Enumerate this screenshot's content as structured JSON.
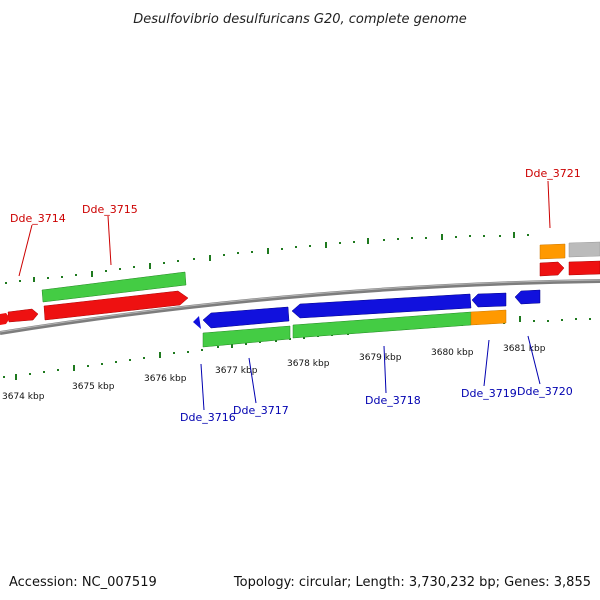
{
  "title": "Desulfovibrio desulfuricans G20, complete genome",
  "footer": {
    "accession": "Accession: NC_007519",
    "summary": "Topology: circular; Length: 3,730,232 bp; Genes: 3,855"
  },
  "colors": {
    "backbone": "#8a8a8a",
    "ticks": "#1f7a1f",
    "gene_red": "#ee1111",
    "gene_green": "#44cc44",
    "gene_blue": "#1111dd",
    "gene_orange": "#ff9900",
    "gene_gray": "#bbbbbb",
    "label_red": "#cc0000",
    "label_blue": "#0000b0"
  },
  "kbp_labels": [
    "3674 kbp",
    "3675 kbp",
    "3676 kbp",
    "3677 kbp",
    "3678 kbp",
    "3679 kbp",
    "3680 kbp",
    "3681 kbp"
  ],
  "gene_labels_top": [
    "Dde_3714",
    "Dde_3715",
    "Dde_3721"
  ],
  "gene_labels_bottom": [
    "Dde_3716",
    "Dde_3717",
    "Dde_3718",
    "Dde_3719",
    "Dde_3720"
  ]
}
